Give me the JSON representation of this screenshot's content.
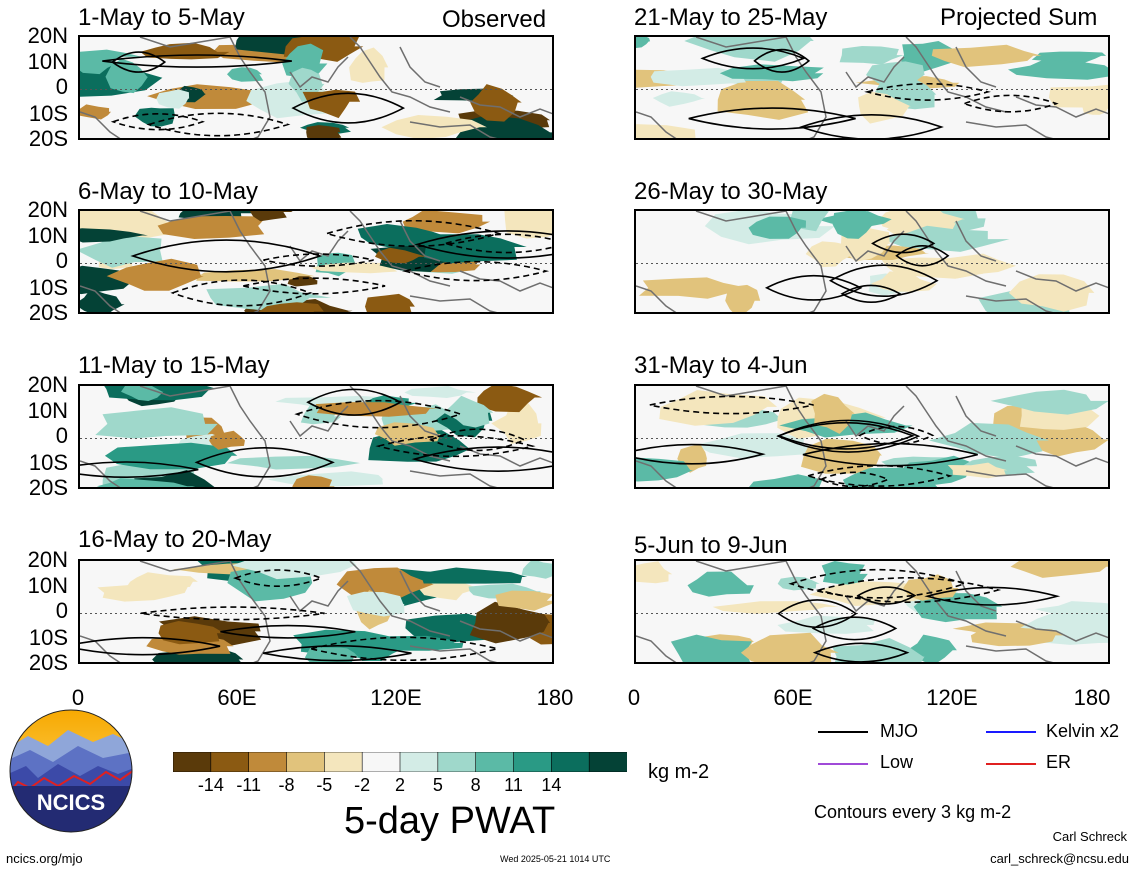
{
  "header": {
    "left_label": "Observed",
    "right_label": "Projected Sum"
  },
  "panels_left": [
    {
      "title": "1-May to 5-May"
    },
    {
      "title": "6-May to 10-May"
    },
    {
      "title": "11-May to 15-May"
    },
    {
      "title": "16-May to 20-May"
    }
  ],
  "panels_right": [
    {
      "title": "21-May to 25-May"
    },
    {
      "title": "26-May to 30-May"
    },
    {
      "title": "31-May to 4-Jun"
    },
    {
      "title": "5-Jun to 9-Jun"
    }
  ],
  "lat_labels": [
    "20N",
    "10N",
    "0",
    "10S",
    "20S"
  ],
  "lon_labels": [
    "0",
    "60E",
    "120E",
    "180"
  ],
  "colorbar": {
    "colors": [
      "#5a3a0a",
      "#8b5a12",
      "#c08a3a",
      "#e1c37c",
      "#f4e6bd",
      "#f7f7f7",
      "#d3ece6",
      "#9fd8cb",
      "#5bbaa6",
      "#2a9a85",
      "#0b6e5d",
      "#044236"
    ],
    "tick_labels": [
      "-14",
      "-11",
      "-8",
      "-5",
      "-2",
      "2",
      "5",
      "8",
      "11",
      "14"
    ],
    "units": "kg m-2",
    "title": "5-day PWAT"
  },
  "legend": {
    "items": [
      {
        "label": "MJO",
        "color": "#000000"
      },
      {
        "label": "Kelvin x2",
        "color": "#1a1aff"
      },
      {
        "label": "Low",
        "color": "#a04ad8"
      },
      {
        "label": "ER",
        "color": "#e02020"
      }
    ],
    "contour_note": "Contours every 3 kg m-2"
  },
  "footer": {
    "logo_text": "NCICS",
    "url": "ncics.org/mjo",
    "timestamp": "Wed 2025-05-21 1014 UTC",
    "author": "Carl Schreck",
    "email": "carl_schreck@ncsu.edu"
  }
}
